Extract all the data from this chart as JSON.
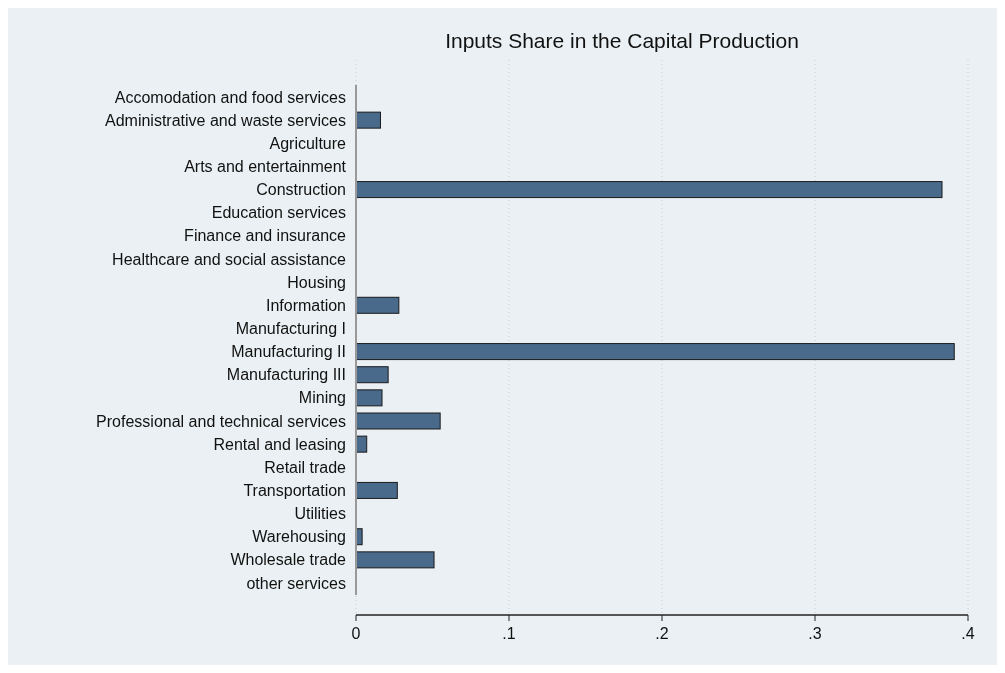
{
  "chart_data": {
    "type": "bar",
    "orientation": "horizontal",
    "title": "Inputs Share in the Capital Production",
    "categories": [
      "Accomodation and food services",
      "Administrative and waste services",
      "Agriculture",
      "Arts and entertainment",
      "Construction",
      "Education services",
      "Finance and insurance",
      "Healthcare and social assistance",
      "Housing",
      "Information",
      "Manufacturing I",
      "Manufacturing II",
      "Manufacturing III",
      "Mining",
      "Professional and technical services",
      "Rental and leasing",
      "Retail trade",
      "Transportation",
      "Utilities",
      "Warehousing",
      "Wholesale trade",
      "other services"
    ],
    "values": [
      0,
      0.016,
      0,
      0,
      0.383,
      0,
      0,
      0,
      0,
      0.028,
      0,
      0.391,
      0.021,
      0.017,
      0.055,
      0.007,
      0,
      0.027,
      0,
      0.004,
      0.051,
      0
    ],
    "color": "#4a6a8c",
    "xlim": [
      0,
      0.4
    ],
    "xticks": [
      {
        "value": 0,
        "label": "0"
      },
      {
        "value": 0.1,
        "label": ".1"
      },
      {
        "value": 0.2,
        "label": ".2"
      },
      {
        "value": 0.3,
        "label": ".3"
      },
      {
        "value": 0.4,
        "label": ".4"
      }
    ],
    "grid": "x"
  }
}
